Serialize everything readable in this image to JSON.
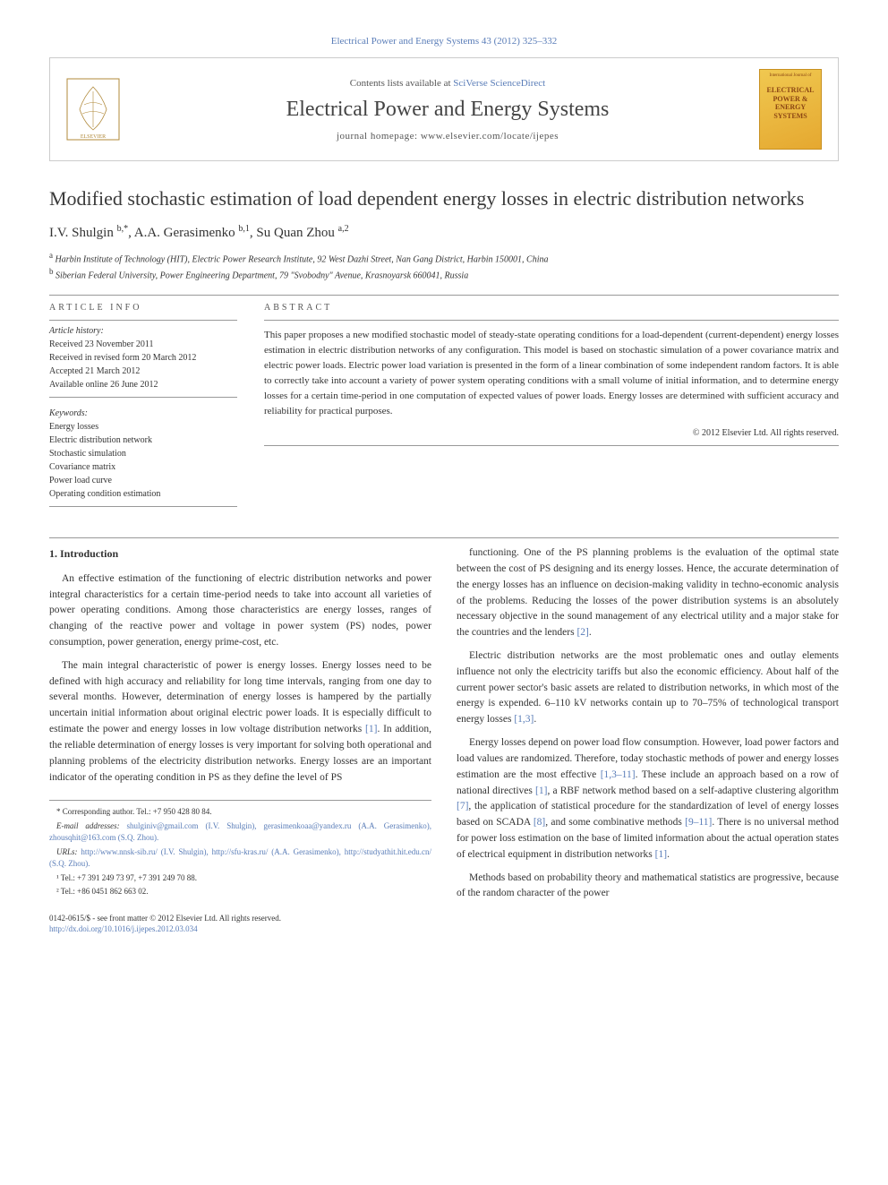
{
  "citation": "Electrical Power and Energy Systems 43 (2012) 325–332",
  "header": {
    "contents_prefix": "Contents lists available at ",
    "contents_link": "SciVerse ScienceDirect",
    "journal_name": "Electrical Power and Energy Systems",
    "homepage": "journal homepage: www.elsevier.com/locate/ijepes",
    "cover_text_top": "International Journal of",
    "cover_text_main": "ELECTRICAL POWER & ENERGY SYSTEMS"
  },
  "title": "Modified stochastic estimation of load dependent energy losses in electric distribution networks",
  "authors_html": "I.V. Shulgin <sup>b,*</sup>, A.A. Gerasimenko <sup>b,1</sup>, Su Quan Zhou <sup>a,2</sup>",
  "affiliations": [
    {
      "sup": "a",
      "text": "Harbin Institute of Technology (HIT), Electric Power Research Institute, 92 West Dazhi Street, Nan Gang District, Harbin 150001, China"
    },
    {
      "sup": "b",
      "text": "Siberian Federal University, Power Engineering Department, 79 \"Svobodny\" Avenue, Krasnoyarsk 660041, Russia"
    }
  ],
  "article_info_head": "ARTICLE INFO",
  "abstract_head": "ABSTRACT",
  "history_label": "Article history:",
  "history": [
    "Received 23 November 2011",
    "Received in revised form 20 March 2012",
    "Accepted 21 March 2012",
    "Available online 26 June 2012"
  ],
  "keywords_label": "Keywords:",
  "keywords": [
    "Energy losses",
    "Electric distribution network",
    "Stochastic simulation",
    "Covariance matrix",
    "Power load curve",
    "Operating condition estimation"
  ],
  "abstract": "This paper proposes a new modified stochastic model of steady-state operating conditions for a load-dependent (current-dependent) energy losses estimation in electric distribution networks of any configuration. This model is based on stochastic simulation of a power covariance matrix and electric power loads. Electric power load variation is presented in the form of a linear combination of some independent random factors. It is able to correctly take into account a variety of power system operating conditions with a small volume of initial information, and to determine energy losses for a certain time-period in one computation of expected values of power loads. Energy losses are determined with sufficient accuracy and reliability for practical purposes.",
  "copyright": "© 2012 Elsevier Ltd. All rights reserved.",
  "intro_heading": "1. Introduction",
  "body_left": [
    "An effective estimation of the functioning of electric distribution networks and power integral characteristics for a certain time-period needs to take into account all varieties of power operating conditions. Among those characteristics are energy losses, ranges of changing of the reactive power and voltage in power system (PS) nodes, power consumption, power generation, energy prime-cost, etc.",
    "The main integral characteristic of power is energy losses. Energy losses need to be defined with high accuracy and reliability for long time intervals, ranging from one day to several months. However, determination of energy losses is hampered by the partially uncertain initial information about original electric power loads. It is especially difficult to estimate the power and energy losses in low voltage distribution networks <span class=\"ref-link\">[1]</span>. In addition, the reliable determination of energy losses is very important for solving both operational and planning problems of the electricity distribution networks. Energy losses are an important indicator of the operating condition in PS as they define the level of PS"
  ],
  "body_right": [
    "functioning. One of the PS planning problems is the evaluation of the optimal state between the cost of PS designing and its energy losses. Hence, the accurate determination of the energy losses has an influence on decision-making validity in techno-economic analysis of the problems. Reducing the losses of the power distribution systems is an absolutely necessary objective in the sound management of any electrical utility and a major stake for the countries and the lenders <span class=\"ref-link\">[2]</span>.",
    "Electric distribution networks are the most problematic ones and outlay elements influence not only the electricity tariffs but also the economic efficiency. About half of the current power sector's basic assets are related to distribution networks, in which most of the energy is expended. 6–110 kV networks contain up to 70–75% of technological transport energy losses <span class=\"ref-link\">[1,3]</span>.",
    "Energy losses depend on power load flow consumption. However, load power factors and load values are randomized. Therefore, today stochastic methods of power and energy losses estimation are the most effective <span class=\"ref-link\">[1,3–11]</span>. These include an approach based on a row of national directives <span class=\"ref-link\">[1]</span>, a RBF network method based on a self-adaptive clustering algorithm <span class=\"ref-link\">[7]</span>, the application of statistical procedure for the standardization of level of energy losses based on SCADA <span class=\"ref-link\">[8]</span>, and some combinative methods <span class=\"ref-link\">[9–11]</span>. There is no universal method for power loss estimation on the base of limited information about the actual operation states of electrical equipment in distribution networks <span class=\"ref-link\">[1]</span>.",
    "Methods based on probability theory and mathematical statistics are progressive, because of the random character of the power"
  ],
  "footnotes": {
    "corresponding": "* Corresponding author. Tel.: +7 950 428 80 84.",
    "emails_label": "E-mail addresses: ",
    "emails": "shulginiv@gmail.com (I.V. Shulgin), gerasimenkoaa@yandex.ru (A.A. Gerasimenko), zhousqhit@163.com (S.Q. Zhou).",
    "urls_label": "URLs: ",
    "urls": "http://www.nnsk-sib.ru/ (I.V. Shulgin), http://sfu-kras.ru/ (A.A. Gerasimenko), http://studyathit.hit.edu.cn/ (S.Q. Zhou).",
    "tel1": "¹ Tel.: +7 391 249 73 97, +7 391 249 70 88.",
    "tel2": "² Tel.: +86 0451 862 663 02."
  },
  "bottom": {
    "issn": "0142-0615/$ - see front matter © 2012 Elsevier Ltd. All rights reserved.",
    "doi": "http://dx.doi.org/10.1016/j.ijepes.2012.03.034"
  },
  "colors": {
    "link": "#5a7db8",
    "text": "#333333",
    "rule": "#999999",
    "cover_bg_start": "#f0c850",
    "cover_bg_end": "#e5a830"
  }
}
